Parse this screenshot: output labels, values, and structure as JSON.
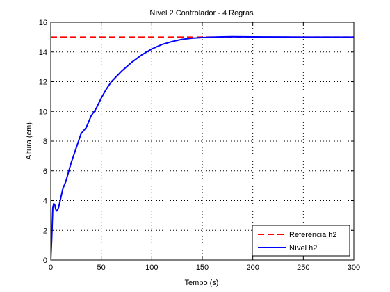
{
  "chart_data": {
    "type": "line",
    "title": "Nível 2 Controlador - 4 Regras",
    "xlabel": "Tempo (s)",
    "ylabel": "Altura (cm)",
    "xlim": [
      0,
      300
    ],
    "ylim": [
      0,
      16
    ],
    "xticks": [
      0,
      50,
      100,
      150,
      200,
      250,
      300
    ],
    "yticks": [
      0,
      2,
      4,
      6,
      8,
      10,
      12,
      14,
      16
    ],
    "grid": true,
    "legend_position": "bottom-right",
    "series": [
      {
        "name": "Referência h2",
        "style": "dashed",
        "color": "#ff0000",
        "x": [
          0,
          300
        ],
        "y": [
          15,
          15
        ]
      },
      {
        "name": "Nível h2",
        "style": "solid",
        "color": "#0000ff",
        "x": [
          0,
          1,
          2,
          3,
          4,
          5,
          6,
          7,
          8,
          9,
          10,
          12,
          15,
          20,
          25,
          30,
          35,
          40,
          45,
          50,
          55,
          60,
          70,
          80,
          90,
          100,
          110,
          120,
          130,
          140,
          150,
          160,
          170,
          180,
          200,
          220,
          250,
          300
        ],
        "y": [
          0,
          1.5,
          3.5,
          3.8,
          3.7,
          3.4,
          3.3,
          3.4,
          3.6,
          3.9,
          4.2,
          4.8,
          5.3,
          6.5,
          7.5,
          8.5,
          8.9,
          9.7,
          10.2,
          10.9,
          11.5,
          12.0,
          12.7,
          13.3,
          13.8,
          14.2,
          14.5,
          14.7,
          14.85,
          14.93,
          14.97,
          15.0,
          15.02,
          15.03,
          15.02,
          15.01,
          15.0,
          15.0
        ]
      }
    ]
  }
}
